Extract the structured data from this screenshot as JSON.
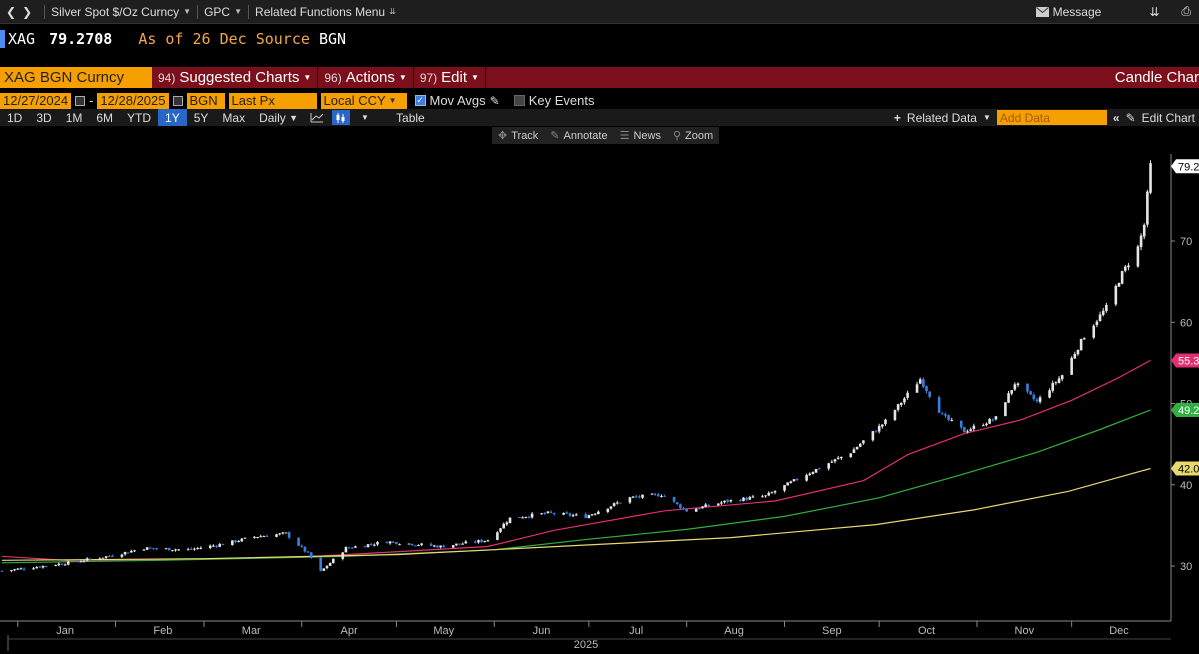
{
  "topbar": {
    "security": "Silver Spot $/Oz Curncy",
    "function": "GPC",
    "related": "Related Functions Menu",
    "message": "Message"
  },
  "secline": {
    "ticker": "XAG",
    "price": "79.2708",
    "as_of_label": "As of",
    "as_of_date": "26 Dec",
    "source_label": "Source",
    "source": "BGN"
  },
  "redbar": {
    "ticker_box": "XAG BGN Curncy",
    "m1_num": "94)",
    "m1": "Suggested Charts",
    "m2_num": "96)",
    "m2": "Actions",
    "m3_num": "97)",
    "m3": "Edit",
    "right": "Candle Char"
  },
  "params": {
    "start": "12/27/2024",
    "dash": "-",
    "end": "12/28/2025",
    "source": "BGN",
    "field": "Last Px",
    "ccy": "Local CCY",
    "movavgs": "Mov Avgs",
    "keyevents": "Key Events"
  },
  "periods": {
    "items": [
      "1D",
      "3D",
      "1M",
      "6M",
      "YTD",
      "1Y",
      "5Y",
      "Max"
    ],
    "freq": "Daily",
    "table": "Table",
    "related_data": "Related Data",
    "add_data": "Add Data",
    "edit_chart": "Edit Chart"
  },
  "tools": {
    "track": "Track",
    "annotate": "Annotate",
    "news": "News",
    "zoom": "Zoom"
  },
  "colors": {
    "up": "#e6e6e6",
    "down": "#3a7fe0",
    "ma_pink": "#e0306e",
    "ma_green": "#30b040",
    "ma_yellow": "#e8d870"
  },
  "chart_data": {
    "type": "candlestick",
    "ylim": [
      22,
      80
    ],
    "y_ticks": [
      30,
      40,
      50,
      60,
      70
    ],
    "x_ticks": [
      "Jan",
      "Feb",
      "Mar",
      "Apr",
      "May",
      "Jun",
      "Jul",
      "Aug",
      "Sep",
      "Oct",
      "Nov",
      "Dec"
    ],
    "x_year_label": "2025",
    "last_price_label": "79.2",
    "ma_labels": [
      "55.3",
      "49.2",
      "42.0"
    ],
    "close_anchors": [
      {
        "date": "2024-12-27",
        "close": 29.4
      },
      {
        "date": "2025-01-03",
        "close": 29.7
      },
      {
        "date": "2025-01-17",
        "close": 30.4
      },
      {
        "date": "2025-01-31",
        "close": 31.3
      },
      {
        "date": "2025-02-10",
        "close": 32.2
      },
      {
        "date": "2025-02-24",
        "close": 32.0
      },
      {
        "date": "2025-03-07",
        "close": 32.7
      },
      {
        "date": "2025-03-17",
        "close": 33.6
      },
      {
        "date": "2025-03-27",
        "close": 34.0
      },
      {
        "date": "2025-04-03",
        "close": 31.5
      },
      {
        "date": "2025-04-07",
        "close": 29.3
      },
      {
        "date": "2025-04-15",
        "close": 32.2
      },
      {
        "date": "2025-04-28",
        "close": 33.0
      },
      {
        "date": "2025-05-15",
        "close": 32.4
      },
      {
        "date": "2025-05-30",
        "close": 33.2
      },
      {
        "date": "2025-06-06",
        "close": 35.9
      },
      {
        "date": "2025-06-18",
        "close": 36.5
      },
      {
        "date": "2025-06-30",
        "close": 36.1
      },
      {
        "date": "2025-07-14",
        "close": 38.4
      },
      {
        "date": "2025-07-24",
        "close": 38.8
      },
      {
        "date": "2025-08-01",
        "close": 36.8
      },
      {
        "date": "2025-08-14",
        "close": 38.0
      },
      {
        "date": "2025-08-26",
        "close": 38.6
      },
      {
        "date": "2025-09-08",
        "close": 41.3
      },
      {
        "date": "2025-09-22",
        "close": 44.0
      },
      {
        "date": "2025-10-03",
        "close": 47.8
      },
      {
        "date": "2025-10-14",
        "close": 53.0
      },
      {
        "date": "2025-10-21",
        "close": 48.5
      },
      {
        "date": "2025-10-28",
        "close": 46.6
      },
      {
        "date": "2025-11-07",
        "close": 48.2
      },
      {
        "date": "2025-11-13",
        "close": 52.5
      },
      {
        "date": "2025-11-20",
        "close": 50.2
      },
      {
        "date": "2025-11-28",
        "close": 53.5
      },
      {
        "date": "2025-12-05",
        "close": 58.3
      },
      {
        "date": "2025-12-12",
        "close": 61.8
      },
      {
        "date": "2025-12-17",
        "close": 66.0
      },
      {
        "date": "2025-12-22",
        "close": 69.2
      },
      {
        "date": "2025-12-24",
        "close": 72.0
      },
      {
        "date": "2025-12-26",
        "close": 79.3
      }
    ],
    "series": [
      {
        "values_points": [
          [
            "2024-12-27",
            31.2
          ],
          [
            "2025-01-20",
            30.6
          ],
          [
            "2025-04-01",
            31.1
          ],
          [
            "2025-05-30",
            32.4
          ],
          [
            "2025-06-20",
            34.4
          ],
          [
            "2025-07-25",
            36.8
          ],
          [
            "2025-08-29",
            38.0
          ],
          [
            "2025-09-26",
            40.5
          ],
          [
            "2025-10-10",
            43.7
          ],
          [
            "2025-10-28",
            46.3
          ],
          [
            "2025-11-15",
            48.0
          ],
          [
            "2025-12-01",
            50.4
          ],
          [
            "2025-12-15",
            53.0
          ],
          [
            "2025-12-26",
            55.3
          ]
        ]
      },
      {
        "values_points": [
          [
            "2024-12-27",
            30.4
          ],
          [
            "2025-02-15",
            30.7
          ],
          [
            "2025-04-15",
            31.2
          ],
          [
            "2025-06-01",
            32.0
          ],
          [
            "2025-07-01",
            33.3
          ],
          [
            "2025-08-01",
            34.5
          ],
          [
            "2025-09-01",
            36.1
          ],
          [
            "2025-10-01",
            38.4
          ],
          [
            "2025-10-25",
            41.0
          ],
          [
            "2025-11-20",
            44.0
          ],
          [
            "2025-12-10",
            46.8
          ],
          [
            "2025-12-26",
            49.2
          ]
        ]
      },
      {
        "values_points": [
          [
            "2024-12-27",
            30.7
          ],
          [
            "2025-03-01",
            30.9
          ],
          [
            "2025-05-01",
            31.4
          ],
          [
            "2025-07-01",
            32.6
          ],
          [
            "2025-08-15",
            33.5
          ],
          [
            "2025-09-30",
            35.1
          ],
          [
            "2025-10-31",
            36.9
          ],
          [
            "2025-11-30",
            39.2
          ],
          [
            "2025-12-26",
            42.0
          ]
        ]
      }
    ]
  }
}
